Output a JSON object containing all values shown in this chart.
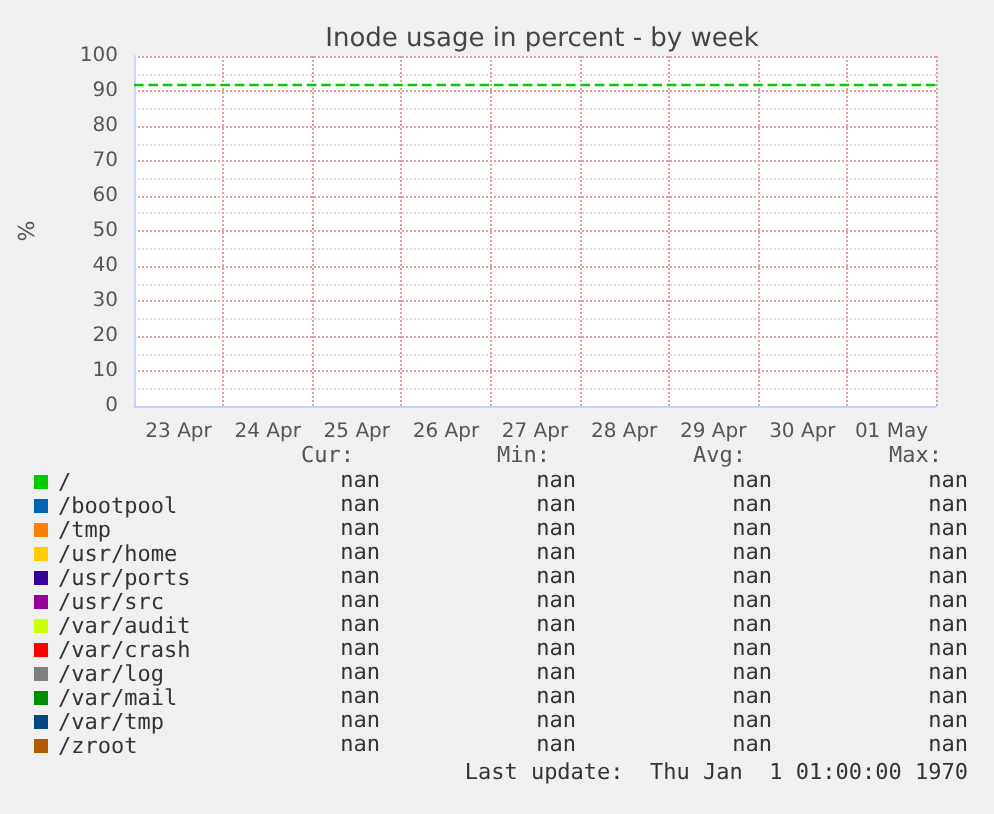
{
  "chart_data": {
    "type": "line",
    "title": "Inode usage in percent - by week",
    "ylabel": "%",
    "categories": [
      "23 Apr",
      "24 Apr",
      "25 Apr",
      "26 Apr",
      "27 Apr",
      "28 Apr",
      "29 Apr",
      "30 Apr",
      "01 May"
    ],
    "series": [
      {
        "name": "/",
        "color": "#00cc00",
        "values": [
          null,
          null,
          null,
          null,
          null,
          null,
          null,
          null,
          null
        ]
      },
      {
        "name": "/bootpool",
        "color": "#0066b3",
        "values": [
          null,
          null,
          null,
          null,
          null,
          null,
          null,
          null,
          null
        ]
      },
      {
        "name": "/tmp",
        "color": "#ff8000",
        "values": [
          null,
          null,
          null,
          null,
          null,
          null,
          null,
          null,
          null
        ]
      },
      {
        "name": "/usr/home",
        "color": "#ffcc00",
        "values": [
          null,
          null,
          null,
          null,
          null,
          null,
          null,
          null,
          null
        ]
      },
      {
        "name": "/usr/ports",
        "color": "#330099",
        "values": [
          null,
          null,
          null,
          null,
          null,
          null,
          null,
          null,
          null
        ]
      },
      {
        "name": "/usr/src",
        "color": "#990099",
        "values": [
          null,
          null,
          null,
          null,
          null,
          null,
          null,
          null,
          null
        ]
      },
      {
        "name": "/var/audit",
        "color": "#ccff00",
        "values": [
          null,
          null,
          null,
          null,
          null,
          null,
          null,
          null,
          null
        ]
      },
      {
        "name": "/var/crash",
        "color": "#ff0000",
        "values": [
          null,
          null,
          null,
          null,
          null,
          null,
          null,
          null,
          null
        ]
      },
      {
        "name": "/var/log",
        "color": "#808080",
        "values": [
          null,
          null,
          null,
          null,
          null,
          null,
          null,
          null,
          null
        ]
      },
      {
        "name": "/var/mail",
        "color": "#008f00",
        "values": [
          null,
          null,
          null,
          null,
          null,
          null,
          null,
          null,
          null
        ]
      },
      {
        "name": "/var/tmp",
        "color": "#00487d",
        "values": [
          null,
          null,
          null,
          null,
          null,
          null,
          null,
          null,
          null
        ]
      },
      {
        "name": "/zroot",
        "color": "#b35a00",
        "values": [
          null,
          null,
          null,
          null,
          null,
          null,
          null,
          null,
          null
        ]
      }
    ],
    "ylim": [
      0,
      100
    ],
    "yticks": [
      0,
      10,
      20,
      30,
      40,
      50,
      60,
      70,
      80,
      90,
      100
    ],
    "grid": true,
    "legend": "bottom",
    "ref_lines": [
      {
        "axis": "y",
        "value": 92,
        "color": "#00cc00",
        "line_style": "dashed"
      }
    ],
    "annotations": [
      "Cur:",
      "Min:",
      "Avg:",
      "Max:",
      "nan",
      "nan",
      "nan",
      "nan",
      "nan",
      "nan",
      "nan",
      "nan",
      "nan",
      "nan",
      "nan",
      "nan",
      "nan",
      "nan",
      "nan",
      "nan",
      "nan",
      "nan",
      "nan",
      "nan",
      "nan",
      "nan",
      "nan",
      "nan",
      "nan",
      "nan",
      "nan",
      "nan",
      "nan",
      "nan",
      "nan",
      "nan",
      "nan",
      "nan",
      "nan",
      "nan",
      "nan",
      "nan",
      "nan",
      "nan",
      "nan",
      "nan",
      "nan",
      "nan",
      "nan",
      "nan",
      "nan",
      "nan",
      "Last update:  Thu Jan  1 01:00:00 1970"
    ]
  }
}
